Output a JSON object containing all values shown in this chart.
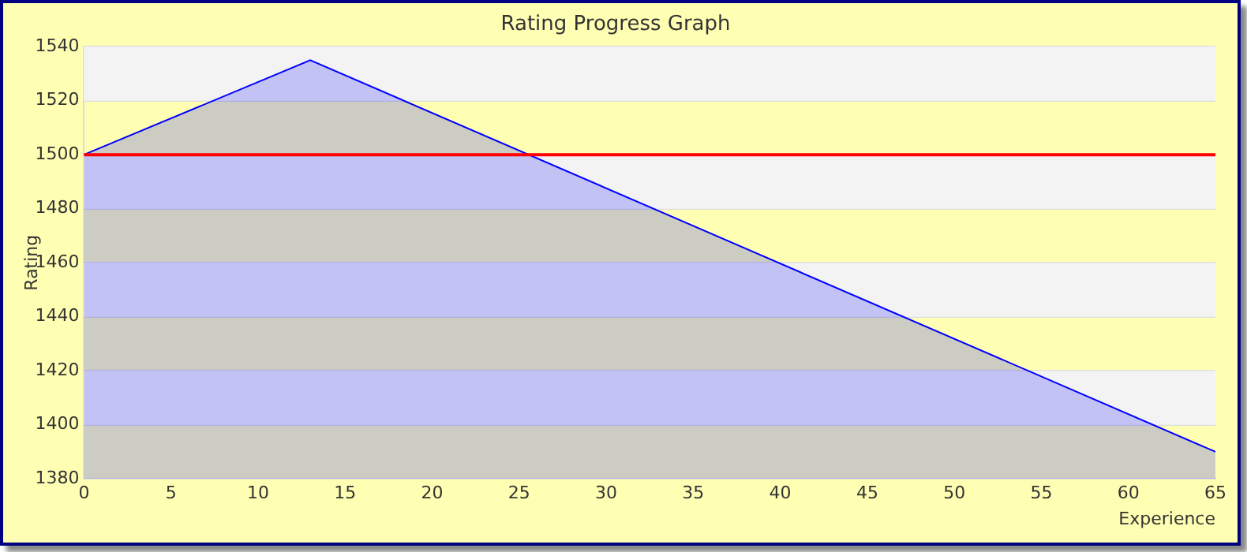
{
  "chart_data": {
    "type": "area",
    "title": "Rating Progress Graph",
    "xlabel": "Experience",
    "ylabel": "Rating",
    "x": [
      0,
      13,
      65
    ],
    "series": [
      {
        "color": "#0000ff",
        "values": [
          1500,
          1535,
          1390
        ]
      }
    ],
    "xlim": [
      0,
      65
    ],
    "xticks": [
      0,
      5,
      10,
      15,
      20,
      25,
      30,
      35,
      40,
      45,
      50,
      55,
      60,
      65
    ],
    "ylim": [
      1380,
      1540
    ],
    "yticks": [
      1380,
      1400,
      1420,
      1440,
      1460,
      1480,
      1500,
      1520,
      1540
    ],
    "ref_lines": [
      {
        "axis": "y",
        "value": 1500,
        "color": "#ff0000"
      }
    ],
    "grid": "y",
    "legend": false,
    "marker": "none"
  }
}
